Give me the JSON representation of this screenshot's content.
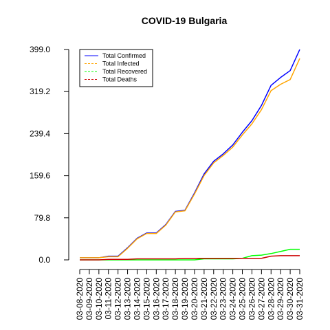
{
  "chart_data": {
    "type": "line",
    "title": "COVID-19 Bulgaria",
    "xlabel": "",
    "ylabel": "",
    "ylim": [
      0,
      399
    ],
    "yticks": [
      "0.0",
      "79.8",
      "159.6",
      "239.4",
      "319.2",
      "399.0"
    ],
    "ytick_values": [
      0,
      79.8,
      159.6,
      239.4,
      319.2,
      399.0
    ],
    "categories": [
      "03-08-2020",
      "03-09-2020",
      "03-10-2020",
      "03-11-2020",
      "03-12-2020",
      "03-13-2020",
      "03-14-2020",
      "03-15-2020",
      "03-16-2020",
      "03-17-2020",
      "03-18-2020",
      "03-19-2020",
      "03-20-2020",
      "03-21-2020",
      "03-22-2020",
      "03-23-2020",
      "03-24-2020",
      "03-25-2020",
      "03-26-2020",
      "03-27-2020",
      "03-28-2020",
      "03-29-2020",
      "03-30-2020",
      "03-31-2020"
    ],
    "legend_position": "top-left",
    "series": [
      {
        "name": "Total Confirmed",
        "color": "#0000ff",
        "dash": "solid",
        "values": [
          4,
          4,
          4,
          7,
          7,
          23,
          41,
          51,
          51,
          67,
          92,
          94,
          127,
          163,
          187,
          201,
          218,
          242,
          264,
          293,
          331,
          346,
          359,
          399
        ]
      },
      {
        "name": "Total Infected",
        "color": "#ffa500",
        "dash": "dashed",
        "values": [
          4,
          4,
          4,
          6,
          6,
          22,
          40,
          50,
          50,
          66,
          91,
          93,
          125,
          160,
          184,
          198,
          214,
          237,
          258,
          285,
          321,
          333,
          342,
          382
        ]
      },
      {
        "name": "Total Recovered",
        "color": "#00ff00",
        "dash": "dashed",
        "values": [
          0,
          0,
          0,
          0,
          0,
          0,
          0,
          0,
          0,
          0,
          0,
          0,
          0,
          2,
          2,
          2,
          2,
          3,
          8,
          9,
          12,
          16,
          20,
          20
        ]
      },
      {
        "name": "Total Deaths",
        "color": "#cc0000",
        "dash": "dashed",
        "values": [
          0,
          0,
          0,
          1,
          1,
          1,
          2,
          2,
          2,
          2,
          2,
          3,
          3,
          3,
          3,
          3,
          3,
          3,
          3,
          3,
          7,
          8,
          8,
          8
        ]
      }
    ]
  }
}
